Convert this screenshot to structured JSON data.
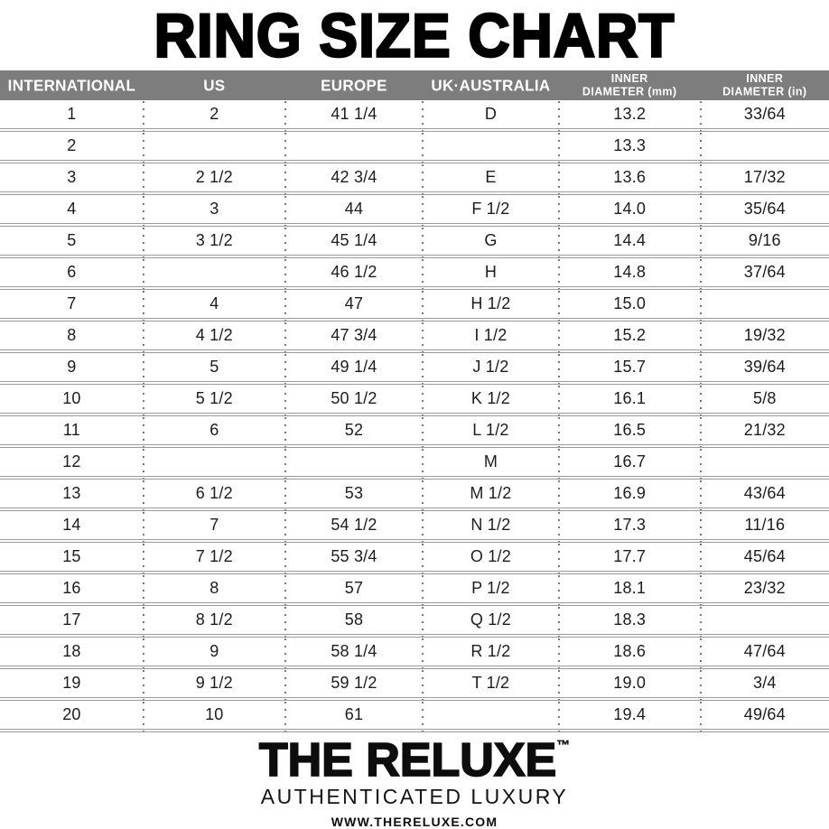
{
  "title": "RING SIZE CHART",
  "colors": {
    "header_bg": "#7d7d7d",
    "header_text": "#ffffff",
    "grid_line": "#9a9a9a",
    "dotted_line": "#787878",
    "text": "#1a1a1a"
  },
  "table": {
    "columns": [
      {
        "id": "international",
        "lines": [
          "INTERNATIONAL"
        ]
      },
      {
        "id": "us",
        "lines": [
          "US"
        ]
      },
      {
        "id": "europe",
        "lines": [
          "EUROPE"
        ]
      },
      {
        "id": "uk-australia",
        "lines": [
          "UK·AUSTRALIA"
        ]
      },
      {
        "id": "inner-diameter-mm",
        "lines": [
          "INNER",
          "DIAMETER (mm)"
        ]
      },
      {
        "id": "inner-diameter-in",
        "lines": [
          "INNER",
          "DIAMETER (in)"
        ]
      }
    ],
    "rows": [
      [
        "1",
        "2",
        "41 1/4",
        "D",
        "13.2",
        "33/64"
      ],
      [
        "2",
        "",
        "",
        "",
        "13.3",
        ""
      ],
      [
        "3",
        "2 1/2",
        "42 3/4",
        "E",
        "13.6",
        "17/32"
      ],
      [
        "4",
        "3",
        "44",
        "F 1/2",
        "14.0",
        "35/64"
      ],
      [
        "5",
        "3 1/2",
        "45 1/4",
        "G",
        "14.4",
        "9/16"
      ],
      [
        "6",
        "",
        "46 1/2",
        "H",
        "14.8",
        "37/64"
      ],
      [
        "7",
        "4",
        "47",
        "H 1/2",
        "15.0",
        ""
      ],
      [
        "8",
        "4 1/2",
        "47 3/4",
        "I 1/2",
        "15.2",
        "19/32"
      ],
      [
        "9",
        "5",
        "49 1/4",
        "J 1/2",
        "15.7",
        "39/64"
      ],
      [
        "10",
        "5 1/2",
        "50 1/2",
        "K 1/2",
        "16.1",
        "5/8"
      ],
      [
        "11",
        "6",
        "52",
        "L 1/2",
        "16.5",
        "21/32"
      ],
      [
        "12",
        "",
        "",
        "M",
        "16.7",
        ""
      ],
      [
        "13",
        "6 1/2",
        "53",
        "M 1/2",
        "16.9",
        "43/64"
      ],
      [
        "14",
        "7",
        "54 1/2",
        "N 1/2",
        "17.3",
        "11/16"
      ],
      [
        "15",
        "7 1/2",
        "55 3/4",
        "O 1/2",
        "17.7",
        "45/64"
      ],
      [
        "16",
        "8",
        "57",
        "P 1/2",
        "18.1",
        "23/32"
      ],
      [
        "17",
        "8 1/2",
        "58",
        "Q 1/2",
        "18.3",
        ""
      ],
      [
        "18",
        "9",
        "58 1/4",
        "R 1/2",
        "18.6",
        "47/64"
      ],
      [
        "19",
        "9 1/2",
        "59 1/2",
        "T 1/2",
        "19.0",
        "3/4"
      ],
      [
        "20",
        "10",
        "61",
        "",
        "19.4",
        "49/64"
      ]
    ]
  },
  "footer": {
    "brand": "THE RELUXE",
    "trademark": "™",
    "tagline": "AUTHENTICATED LUXURY",
    "website": "WWW.THERELUXE.COM"
  }
}
